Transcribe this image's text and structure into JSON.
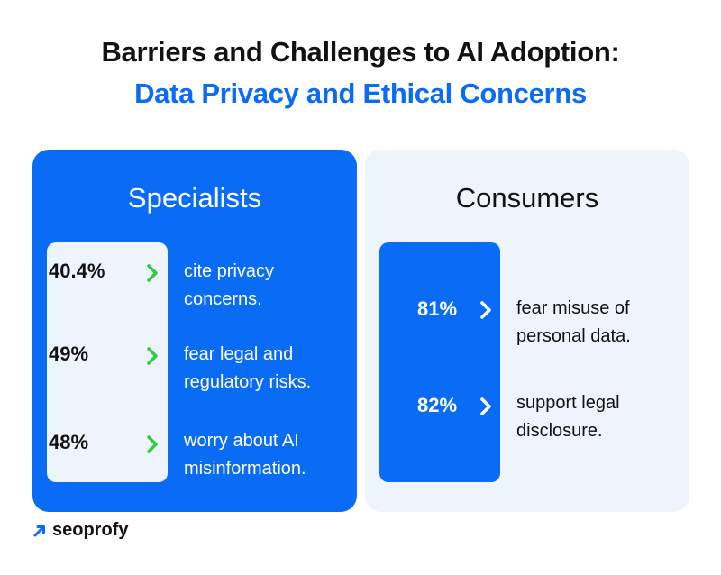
{
  "header": {
    "title_line1": "Barriers and Challenges to AI Adoption:",
    "title_line2": "Data Privacy and Ethical Concerns"
  },
  "specialists": {
    "title": "Specialists",
    "items": [
      {
        "stat": "40.4%",
        "desc": "cite privacy concerns."
      },
      {
        "stat": "49%",
        "desc": "fear legal and regulatory risks."
      },
      {
        "stat": "48%",
        "desc": "worry about AI misinformation."
      }
    ]
  },
  "consumers": {
    "title": "Consumers",
    "items": [
      {
        "stat": "81%",
        "desc": "fear misuse of personal data."
      },
      {
        "stat": "82%",
        "desc": "support legal disclosure."
      }
    ]
  },
  "brand": {
    "name": "seoprofy"
  },
  "colors": {
    "accent": "#0a6cf5",
    "light_panel": "#eef4fb",
    "arrow_green": "#2ecc40",
    "text_dark": "#121212"
  },
  "icons": {
    "specialists_arrow": "chevron-right-icon",
    "consumers_arrow": "chevron-right-icon",
    "logo": "arrow-up-right-icon"
  }
}
